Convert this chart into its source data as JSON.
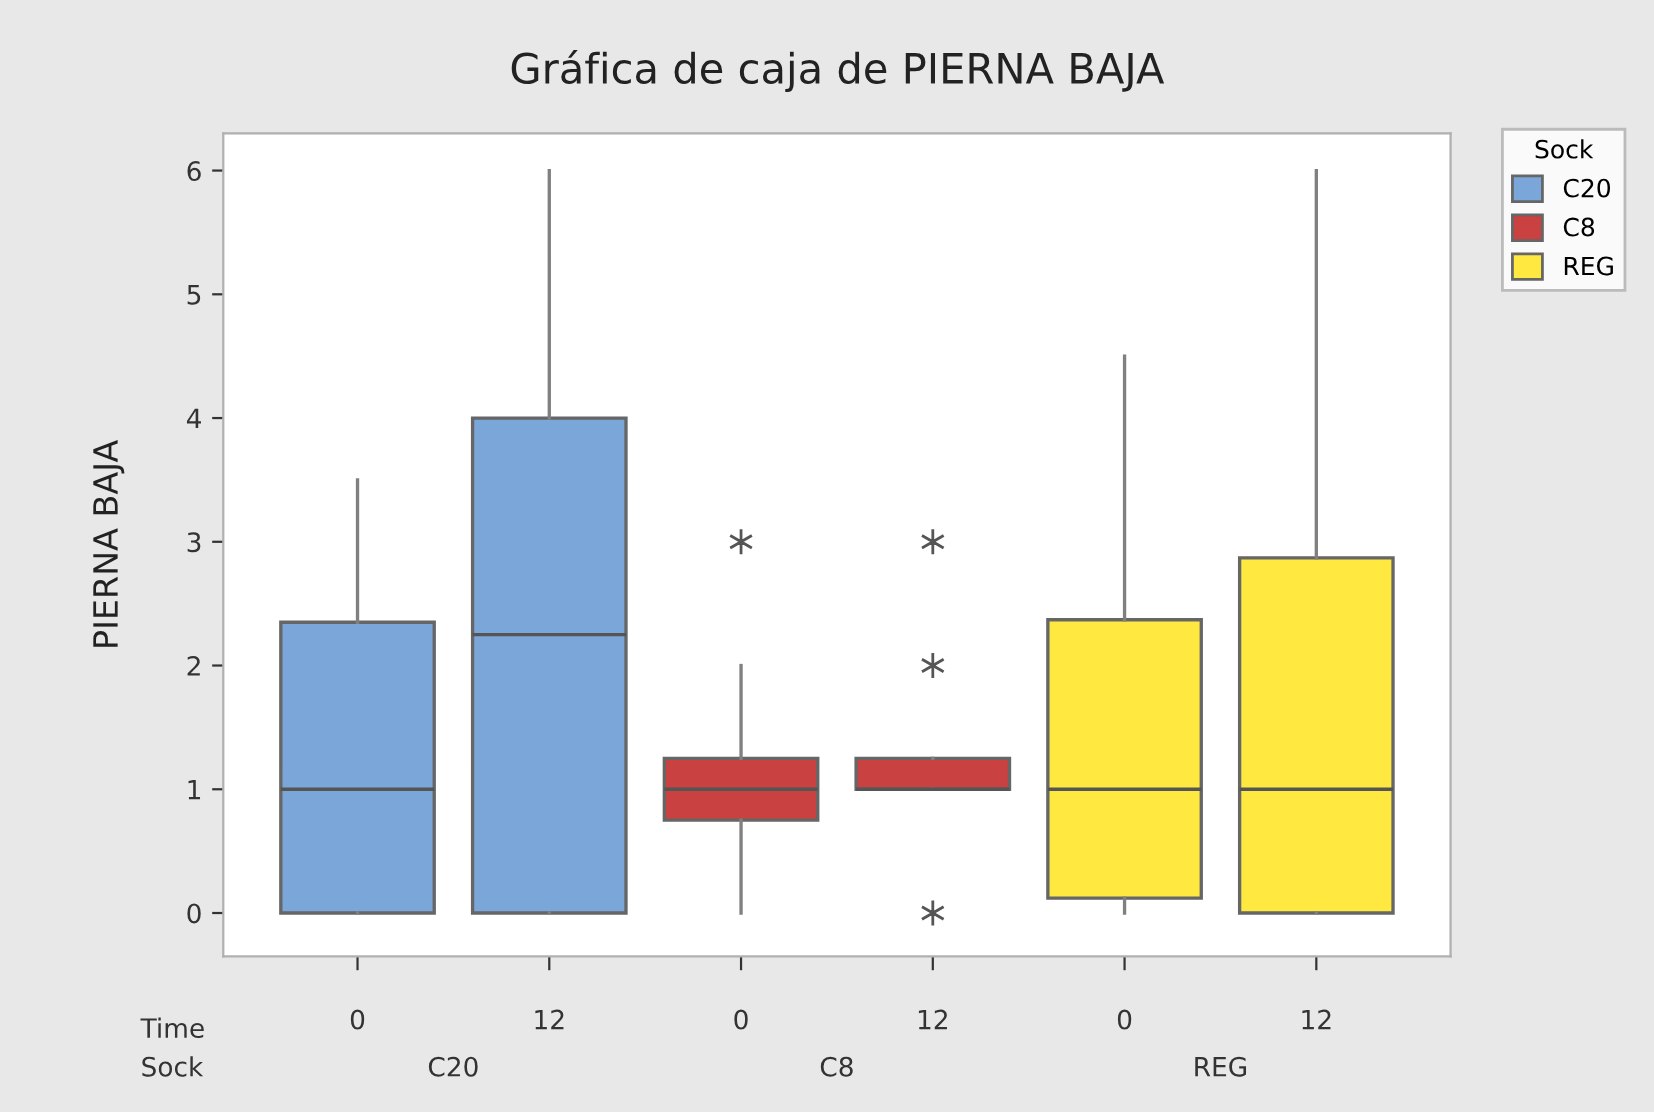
{
  "chart_data": {
    "type": "box",
    "title": "Gráfica de caja de PIERNA BAJA",
    "ylabel": "PIERNA BAJA",
    "legend_title": "Sock",
    "legend": "top right",
    "grid": false,
    "categories": [
      "0",
      "12",
      "0",
      "12",
      "0",
      "12"
    ],
    "ylim": [
      -0.35,
      6.3
    ],
    "yticks": [
      0,
      1,
      2,
      3,
      4,
      5,
      6
    ],
    "annotations": [
      "Time",
      "Sock"
    ],
    "series": [
      {
        "name": "C20",
        "color": "#7ba6d9",
        "boxes": [
          {
            "low": 0,
            "q1": 0,
            "median": 1,
            "q3": 2.35,
            "high": 3.5
          },
          {
            "low": 0,
            "q1": 0,
            "median": 2.25,
            "q3": 4,
            "high": 6
          },
          null,
          null,
          null,
          null
        ]
      },
      {
        "name": "C8",
        "color": "#c94141",
        "boxes": [
          null,
          null,
          {
            "low": 0,
            "q1": 0.75,
            "median": 1,
            "q3": 1.25,
            "high": 2,
            "outliers": [
              3
            ]
          },
          {
            "low": 1,
            "q1": 1,
            "median": 1,
            "q3": 1.25,
            "high": 1.25,
            "outliers": [
              0,
              2,
              3
            ]
          },
          null,
          null
        ]
      },
      {
        "name": "REG",
        "color": "#ffe941",
        "boxes": [
          null,
          null,
          null,
          null,
          {
            "low": 0,
            "q1": 0.12,
            "median": 1,
            "q3": 2.37,
            "high": 4.5
          },
          {
            "low": 0,
            "q1": 0,
            "median": 1,
            "q3": 2.87,
            "high": 6
          }
        ]
      }
    ]
  }
}
